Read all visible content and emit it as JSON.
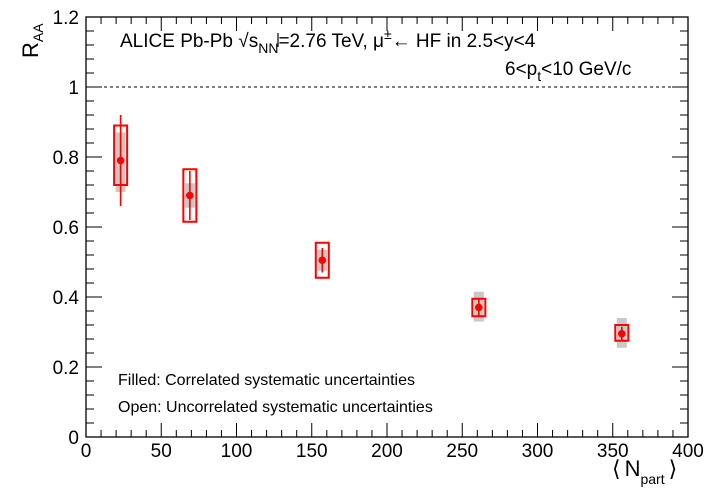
{
  "chart_data": {
    "type": "scatter",
    "ylabel": {
      "main": "R",
      "sub": "AA"
    },
    "xlabel": {
      "left": "⟨",
      "main": "N",
      "sub": "part",
      "right": "⟩"
    },
    "xlim": [
      0,
      400
    ],
    "ylim": [
      0,
      1.2
    ],
    "x_ticks": [
      "0",
      "50",
      "100",
      "150",
      "200",
      "250",
      "300",
      "350",
      "400"
    ],
    "x_tick_values": [
      0,
      50,
      100,
      150,
      200,
      250,
      300,
      350,
      400
    ],
    "y_ticks": [
      "0",
      "0.2",
      "0.4",
      "0.6",
      "0.8",
      "1",
      "1.2"
    ],
    "y_tick_values": [
      0,
      0.2,
      0.4,
      0.6,
      0.8,
      1.0,
      1.2
    ],
    "reference_line": 1.0,
    "annotation_line1": {
      "a": "ALICE Pb-Pb ",
      "b": "s",
      "b_sub": "NN",
      "c": "=2.76 TeV, μ",
      "c_sup": "±",
      "d": "← HF in 2.5<y<4"
    },
    "annotation_line2": {
      "a": "6<p",
      "a_sub": "t",
      "b": "<10 GeV/c"
    },
    "notes": [
      "Filled: Correlated systematic uncertainties",
      "Open: Uncorrelated systematic uncertainties"
    ],
    "points": [
      {
        "x": 23,
        "y": 0.79,
        "stat_lo": 0.66,
        "stat_hi": 0.92,
        "uncorr_lo": 0.72,
        "uncorr_hi": 0.89,
        "corr_lo": 0.7,
        "corr_hi": 0.87
      },
      {
        "x": 69,
        "y": 0.69,
        "stat_lo": 0.62,
        "stat_hi": 0.76,
        "uncorr_lo": 0.615,
        "uncorr_hi": 0.765,
        "corr_lo": 0.655,
        "corr_hi": 0.725
      },
      {
        "x": 157,
        "y": 0.505,
        "stat_lo": 0.47,
        "stat_hi": 0.54,
        "uncorr_lo": 0.455,
        "uncorr_hi": 0.555,
        "corr_lo": 0.475,
        "corr_hi": 0.535
      },
      {
        "x": 261,
        "y": 0.37,
        "stat_lo": 0.345,
        "stat_hi": 0.395,
        "uncorr_lo": 0.345,
        "uncorr_hi": 0.395,
        "corr_lo": 0.33,
        "corr_hi": 0.415
      },
      {
        "x": 356,
        "y": 0.295,
        "stat_lo": 0.275,
        "stat_hi": 0.315,
        "uncorr_lo": 0.275,
        "uncorr_hi": 0.32,
        "corr_lo": 0.255,
        "corr_hi": 0.34
      }
    ],
    "colors": {
      "marker": "#ff0000",
      "uncorrelated_box": "#ff0000",
      "correlated_fill": "#c8c8c8",
      "axis": "#000000"
    }
  }
}
